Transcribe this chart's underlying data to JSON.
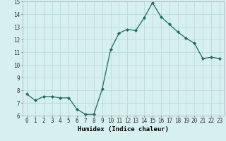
{
  "x": [
    0,
    1,
    2,
    3,
    4,
    5,
    6,
    7,
    8,
    9,
    10,
    11,
    12,
    13,
    14,
    15,
    16,
    17,
    18,
    19,
    20,
    21,
    22,
    23
  ],
  "y": [
    7.7,
    7.2,
    7.5,
    7.5,
    7.4,
    7.4,
    6.5,
    6.1,
    6.1,
    8.1,
    11.2,
    12.5,
    12.8,
    12.7,
    13.7,
    14.9,
    13.8,
    13.2,
    12.6,
    12.1,
    11.7,
    10.5,
    10.6,
    10.5
  ],
  "line_color": "#1a6b5a",
  "marker": "D",
  "marker_size": 2.2,
  "bg_color": "#d6f0ef",
  "grid_color": "#b8dbd8",
  "xlabel": "Humidex (Indice chaleur)",
  "ylim": [
    6,
    15
  ],
  "xlim": [
    -0.5,
    23.5
  ],
  "yticks": [
    6,
    7,
    8,
    9,
    10,
    11,
    12,
    13,
    14,
    15
  ],
  "xticks": [
    0,
    1,
    2,
    3,
    4,
    5,
    6,
    7,
    8,
    9,
    10,
    11,
    12,
    13,
    14,
    15,
    16,
    17,
    18,
    19,
    20,
    21,
    22,
    23
  ],
  "xlabel_fontsize": 6.5,
  "tick_fontsize": 5.5
}
